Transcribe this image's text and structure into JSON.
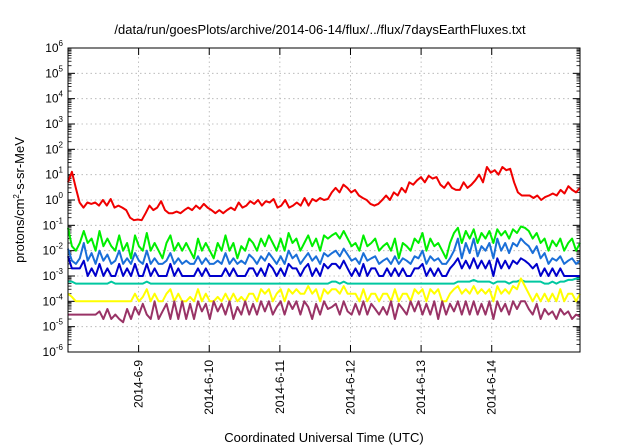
{
  "chart_data": {
    "type": "line",
    "title": "/data/run/goesPlots/archive/2014-06-14/flux/../flux/7daysEarthFluxes.txt",
    "xlabel": "Coordinated Universal Time (UTC)",
    "ylabel_base": "protons/cm",
    "ylabel_sup": "2",
    "ylabel_rest": "-s-sr-MeV",
    "y_scale": "log",
    "ylim_exponents": [
      -6,
      6
    ],
    "y_tick_base": "10",
    "y_tick_exponents": [
      "-6",
      "-5",
      "-4",
      "-3",
      "-2",
      "-1",
      "0",
      "1",
      "2",
      "3",
      "4",
      "5",
      "6"
    ],
    "x_range_days": [
      0,
      7.25
    ],
    "x_tick_labels": [
      "2014-6-9",
      "2014-6-10",
      "2014-6-11",
      "2014-6-12",
      "2014-6-13",
      "2014-6-14"
    ],
    "grid": true,
    "legend": "none",
    "series": [
      {
        "color": "#f00000",
        "values": [
          5,
          13,
          3,
          0.8,
          0.5,
          0.8,
          0.7,
          0.8,
          0.6,
          1.0,
          0.6,
          1.1,
          0.5,
          0.6,
          0.5,
          0.4,
          0.2,
          0.16,
          0.17,
          0.16,
          0.3,
          0.6,
          0.4,
          0.5,
          0.9,
          0.4,
          0.3,
          0.3,
          0.35,
          0.3,
          0.4,
          0.5,
          0.4,
          0.6,
          0.45,
          0.7,
          0.5,
          0.4,
          0.3,
          0.4,
          0.3,
          0.4,
          0.5,
          0.4,
          0.8,
          0.5,
          0.6,
          0.9,
          0.7,
          1.0,
          0.6,
          0.9,
          0.8,
          1.1,
          0.5,
          0.6,
          1.0,
          0.5,
          0.6,
          0.8,
          0.6,
          1.2,
          0.6,
          1.1,
          0.9,
          1.2,
          1.0,
          1.1,
          2.0,
          3.0,
          2.0,
          4.0,
          3.0,
          2.0,
          2.5,
          1.5,
          1.2,
          1.0,
          0.7,
          0.6,
          0.7,
          1.0,
          1.5,
          1.0,
          2.0,
          1.5,
          3.0,
          2.0,
          5.0,
          4.0,
          6.0,
          8.0,
          5.0,
          9.0,
          7.0,
          8.0,
          4.0,
          3.0,
          5.0,
          3.0,
          2.5,
          2.5,
          5.0,
          3.0,
          4.0,
          6.0,
          10.0,
          5.0,
          20.0,
          12.0,
          15.0,
          10.0,
          20.0,
          15.0,
          17.0,
          5.0,
          2.0,
          1.5,
          1.5,
          1.5,
          1.2,
          1.5,
          1.0,
          1.3,
          1.5,
          1.8,
          1.5,
          2.5,
          1.8,
          3.5,
          2.5,
          2.0,
          3.0
        ]
      },
      {
        "color": "#00ee00",
        "values": [
          0.08,
          0.015,
          0.01,
          0.02,
          0.06,
          0.02,
          0.03,
          0.01,
          0.06,
          0.015,
          0.03,
          0.015,
          0.01,
          0.04,
          0.01,
          0.02,
          0.005,
          0.04,
          0.015,
          0.01,
          0.05,
          0.01,
          0.02,
          0.01,
          0.005,
          0.02,
          0.04,
          0.01,
          0.02,
          0.01,
          0.02,
          0.01,
          0.005,
          0.03,
          0.01,
          0.02,
          0.01,
          0.005,
          0.02,
          0.01,
          0.04,
          0.01,
          0.02,
          0.005,
          0.015,
          0.01,
          0.03,
          0.02,
          0.01,
          0.03,
          0.015,
          0.04,
          0.02,
          0.01,
          0.03,
          0.01,
          0.05,
          0.02,
          0.03,
          0.01,
          0.02,
          0.04,
          0.015,
          0.03,
          0.01,
          0.04,
          0.03,
          0.04,
          0.05,
          0.03,
          0.06,
          0.03,
          0.015,
          0.02,
          0.01,
          0.04,
          0.015,
          0.02,
          0.03,
          0.01,
          0.015,
          0.02,
          0.01,
          0.03,
          0.005,
          0.02,
          0.015,
          0.01,
          0.03,
          0.02,
          0.05,
          0.01,
          0.03,
          0.015,
          0.02,
          0.01,
          0.005,
          0.02,
          0.05,
          0.08,
          0.02,
          0.06,
          0.03,
          0.07,
          0.02,
          0.05,
          0.03,
          0.06,
          0.02,
          0.07,
          0.04,
          0.06,
          0.03,
          0.07,
          0.05,
          0.09,
          0.08,
          0.06,
          0.03,
          0.05,
          0.02,
          0.03,
          0.01,
          0.025,
          0.015,
          0.03,
          0.01,
          0.02,
          0.03,
          0.01,
          0.02
        ]
      },
      {
        "color": "#1a6fd8",
        "values": [
          0.012,
          0.004,
          0.003,
          0.005,
          0.02,
          0.004,
          0.008,
          0.003,
          0.01,
          0.004,
          0.007,
          0.003,
          0.004,
          0.01,
          0.003,
          0.005,
          0.003,
          0.008,
          0.004,
          0.003,
          0.01,
          0.003,
          0.005,
          0.003,
          0.003,
          0.004,
          0.008,
          0.003,
          0.005,
          0.003,
          0.004,
          0.003,
          0.003,
          0.006,
          0.003,
          0.005,
          0.003,
          0.003,
          0.004,
          0.003,
          0.008,
          0.003,
          0.005,
          0.003,
          0.004,
          0.003,
          0.007,
          0.005,
          0.003,
          0.006,
          0.004,
          0.008,
          0.005,
          0.003,
          0.006,
          0.003,
          0.01,
          0.005,
          0.007,
          0.003,
          0.005,
          0.008,
          0.004,
          0.006,
          0.003,
          0.008,
          0.006,
          0.008,
          0.01,
          0.006,
          0.012,
          0.007,
          0.004,
          0.005,
          0.003,
          0.008,
          0.004,
          0.005,
          0.006,
          0.003,
          0.004,
          0.005,
          0.003,
          0.006,
          0.003,
          0.005,
          0.004,
          0.003,
          0.006,
          0.005,
          0.01,
          0.003,
          0.006,
          0.004,
          0.005,
          0.003,
          0.003,
          0.005,
          0.01,
          0.03,
          0.005,
          0.02,
          0.008,
          0.03,
          0.006,
          0.015,
          0.01,
          0.02,
          0.005,
          0.03,
          0.01,
          0.02,
          0.008,
          0.02,
          0.015,
          0.03,
          0.02,
          0.015,
          0.008,
          0.015,
          0.005,
          0.008,
          0.003,
          0.005,
          0.004,
          0.006,
          0.003,
          0.004,
          0.005,
          0.003,
          0.004
        ]
      },
      {
        "color": "#0000cc",
        "values": [
          0.006,
          0.002,
          0.002,
          0.002,
          0.004,
          0.001,
          0.002,
          0.001,
          0.003,
          0.001,
          0.002,
          0.001,
          0.001,
          0.003,
          0.001,
          0.002,
          0.001,
          0.003,
          0.001,
          0.001,
          0.003,
          0.001,
          0.002,
          0.001,
          0.001,
          0.001,
          0.003,
          0.001,
          0.002,
          0.001,
          0.001,
          0.001,
          0.001,
          0.002,
          0.001,
          0.002,
          0.001,
          0.001,
          0.001,
          0.001,
          0.002,
          0.001,
          0.002,
          0.001,
          0.001,
          0.001,
          0.002,
          0.002,
          0.001,
          0.002,
          0.001,
          0.003,
          0.002,
          0.001,
          0.002,
          0.001,
          0.003,
          0.002,
          0.002,
          0.001,
          0.002,
          0.003,
          0.001,
          0.002,
          0.001,
          0.003,
          0.002,
          0.003,
          0.003,
          0.002,
          0.004,
          0.002,
          0.001,
          0.002,
          0.001,
          0.003,
          0.001,
          0.002,
          0.002,
          0.001,
          0.001,
          0.002,
          0.001,
          0.002,
          0.001,
          0.002,
          0.001,
          0.001,
          0.002,
          0.002,
          0.003,
          0.001,
          0.002,
          0.001,
          0.002,
          0.001,
          0.001,
          0.002,
          0.003,
          0.005,
          0.002,
          0.004,
          0.002,
          0.005,
          0.002,
          0.004,
          0.002,
          0.004,
          0.001,
          0.005,
          0.002,
          0.004,
          0.002,
          0.004,
          0.003,
          0.005,
          0.004,
          0.003,
          0.002,
          0.003,
          0.001,
          0.002,
          0.001,
          0.002,
          0.001,
          0.002,
          0.001,
          0.001,
          0.001,
          0.001,
          0.001
        ]
      },
      {
        "color": "#00c8a0",
        "values": [
          0.0006,
          0.0006,
          0.0005,
          0.0005,
          0.0005,
          0.0005,
          0.0005,
          0.0005,
          0.0005,
          0.0005,
          0.0005,
          0.0006,
          0.0005,
          0.0005,
          0.0005,
          0.0005,
          0.0005,
          0.0005,
          0.0005,
          0.0005,
          0.0006,
          0.0005,
          0.0005,
          0.0005,
          0.0005,
          0.0005,
          0.0005,
          0.0005,
          0.0005,
          0.0005,
          0.0005,
          0.0005,
          0.0005,
          0.0005,
          0.0005,
          0.0005,
          0.0005,
          0.0005,
          0.0005,
          0.0005,
          0.0005,
          0.0005,
          0.0005,
          0.0005,
          0.0005,
          0.0005,
          0.0005,
          0.0005,
          0.0005,
          0.0005,
          0.0005,
          0.0005,
          0.0005,
          0.0005,
          0.0005,
          0.0005,
          0.0005,
          0.0005,
          0.0005,
          0.0005,
          0.0005,
          0.0005,
          0.0005,
          0.0005,
          0.0005,
          0.0005,
          0.0005,
          0.0006,
          0.0006,
          0.0005,
          0.0006,
          0.0005,
          0.0005,
          0.0005,
          0.0005,
          0.0005,
          0.0005,
          0.0005,
          0.0005,
          0.0005,
          0.0005,
          0.0005,
          0.0005,
          0.0005,
          0.0005,
          0.0005,
          0.0005,
          0.0005,
          0.0005,
          0.0005,
          0.0005,
          0.0005,
          0.0005,
          0.0005,
          0.0005,
          0.0005,
          0.0005,
          0.0005,
          0.0005,
          0.0006,
          0.0006,
          0.0006,
          0.0006,
          0.0007,
          0.0006,
          0.0006,
          0.0006,
          0.0006,
          0.0005,
          0.0006,
          0.0006,
          0.0006,
          0.0005,
          0.0006,
          0.0006,
          0.0007,
          0.0006,
          0.0006,
          0.0006,
          0.0006,
          0.0006,
          0.0005,
          0.0005,
          0.0006,
          0.0005,
          0.0006,
          0.0006,
          0.0007,
          0.0007,
          0.0008,
          0.0008
        ]
      },
      {
        "color": "#ffff00",
        "values": [
          0.0002,
          0.00015,
          0.0001,
          0.0001,
          0.0001,
          0.0001,
          0.0001,
          0.0001,
          0.0001,
          0.0001,
          0.0001,
          0.0001,
          0.0001,
          0.0001,
          0.0001,
          0.0001,
          0.0001,
          0.0002,
          0.0001,
          0.00015,
          0.0003,
          0.0001,
          0.0002,
          0.0001,
          0.0001,
          0.0002,
          0.0003,
          0.0001,
          0.0002,
          0.0001,
          0.0001,
          0.00015,
          0.0001,
          0.0003,
          0.0001,
          0.0002,
          0.0001,
          0.0001,
          0.00015,
          0.0001,
          0.0002,
          0.0001,
          0.0002,
          0.0001,
          0.00015,
          0.0001,
          0.0002,
          0.0002,
          0.0001,
          0.0003,
          0.0002,
          0.0003,
          0.0001,
          0.0002,
          0.0003,
          0.0001,
          0.0003,
          0.0002,
          0.0003,
          0.0002,
          0.0002,
          0.0004,
          0.0002,
          0.0003,
          0.0001,
          0.0003,
          0.0002,
          0.0003,
          0.0003,
          0.0002,
          0.0004,
          0.0002,
          0.0002,
          0.0002,
          0.0001,
          0.0003,
          0.0001,
          0.0002,
          0.0002,
          0.0001,
          0.0002,
          0.0002,
          0.0001,
          0.0003,
          0.0001,
          0.0002,
          0.0002,
          0.0001,
          0.0003,
          0.0002,
          0.0003,
          0.0001,
          0.0003,
          0.0002,
          0.0003,
          0.0001,
          0.0001,
          0.0002,
          0.0003,
          0.0004,
          0.0002,
          0.0003,
          0.0002,
          0.0004,
          0.0002,
          0.0003,
          0.0002,
          0.0003,
          0.0001,
          0.0004,
          0.0002,
          0.0003,
          0.0002,
          0.0004,
          0.0003,
          0.0008,
          0.0004,
          0.0002,
          0.0001,
          0.0002,
          0.0001,
          0.0002,
          0.0001,
          0.0002,
          0.0001,
          0.0003,
          0.0001,
          0.0002,
          0.0002,
          0.0001,
          0.0002
        ]
      },
      {
        "color": "#993366",
        "values": [
          3e-05,
          3e-05,
          3e-05,
          3e-05,
          3e-05,
          3e-05,
          3e-05,
          3e-05,
          4e-05,
          2e-05,
          5e-05,
          2e-05,
          3e-05,
          2e-05,
          1.5e-05,
          5e-05,
          2e-05,
          6e-05,
          3e-05,
          8e-05,
          3e-05,
          2e-05,
          0.0001,
          2e-05,
          4e-05,
          8e-05,
          2e-05,
          0.0001,
          2e-05,
          0.0001,
          2e-05,
          8e-05,
          2e-05,
          0.0001,
          4e-05,
          8e-05,
          2e-05,
          0.0001,
          4e-05,
          8e-05,
          3e-05,
          0.0001,
          2e-05,
          6e-05,
          3e-05,
          0.0001,
          3e-05,
          8e-05,
          3e-05,
          0.0001,
          4e-05,
          0.0001,
          3e-05,
          6e-05,
          0.0001,
          3e-05,
          0.0001,
          5e-05,
          0.0001,
          3e-05,
          0.0001,
          6e-05,
          2e-05,
          8e-05,
          3e-05,
          0.0001,
          5e-05,
          6e-05,
          8e-05,
          3e-05,
          0.0001,
          4e-05,
          3e-05,
          8e-05,
          3e-05,
          0.0001,
          3e-05,
          8e-05,
          5e-05,
          3e-05,
          6e-05,
          3e-05,
          0.0001,
          2e-05,
          8e-05,
          5e-05,
          3e-05,
          0.0001,
          4e-05,
          0.0001,
          3e-05,
          8e-05,
          3e-05,
          0.0001,
          2e-05,
          0.0001,
          3e-05,
          8e-05,
          4e-05,
          0.0001,
          3e-05,
          0.0001,
          3e-05,
          0.0001,
          3e-05,
          8e-05,
          3e-05,
          0.0001,
          2e-05,
          0.0001,
          4e-05,
          8e-05,
          3e-05,
          0.0001,
          5e-05,
          0.0001,
          0.0001,
          5e-05,
          3e-05,
          8e-05,
          2e-05,
          5e-05,
          3e-05,
          4e-05,
          2e-05,
          5e-05,
          3e-05,
          4e-05,
          2e-05,
          3e-05,
          2.5e-05
        ]
      }
    ]
  }
}
